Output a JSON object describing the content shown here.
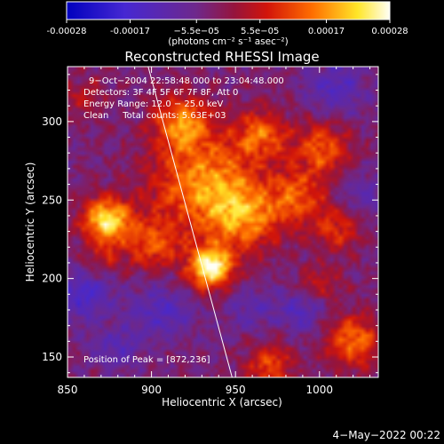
{
  "chart_data": {
    "type": "heatmap",
    "title": "Reconstructed RHESSI Image",
    "xlabel": "Heliocentric X (arcsec)",
    "ylabel": "Heliocentric Y (arcsec)",
    "xlim": [
      850,
      1035
    ],
    "ylim": [
      137,
      335
    ],
    "x_ticks": [
      850,
      900,
      950,
      1000
    ],
    "y_ticks": [
      150,
      200,
      250,
      300
    ],
    "colorbar": {
      "min": -0.00028,
      "max": 0.00028,
      "tick_values": [
        -0.00028,
        -0.00017,
        -5.5e-05,
        5.5e-05,
        0.00017,
        0.00028
      ],
      "tick_labels": [
        "-0.00028",
        "-0.00017",
        "−5.5e−05",
        "5.5e−05",
        "0.00017",
        "0.00028"
      ],
      "label": "(photons cm⁻² s⁻¹ asec⁻²)",
      "colormap": "blue-purple-red-orange-yellow-white"
    },
    "annotations": [
      "9−Oct−2004 22:58:48.000 to 23:04:48.000",
      "Detectors: 3F 4F 5F 6F 7F 8F, Att 0",
      "Energy Range: 12.0 − 25.0 keV",
      "Clean     Total counts: 5.63E+03"
    ],
    "peak_label": "Position of Peak = [872,236]",
    "peak": [
      872,
      236
    ],
    "limb_line": [
      [
        898,
        335
      ],
      [
        948,
        137
      ]
    ],
    "sources": [
      {
        "x": 935,
        "y": 207,
        "intensity": 1.0,
        "width": 9
      },
      {
        "x": 873,
        "y": 237,
        "intensity": 0.85,
        "width": 10
      },
      {
        "x": 930,
        "y": 262,
        "intensity": 0.6,
        "width": 22
      },
      {
        "x": 955,
        "y": 240,
        "intensity": 0.55,
        "width": 16
      },
      {
        "x": 918,
        "y": 300,
        "intensity": 0.55,
        "width": 12
      },
      {
        "x": 965,
        "y": 292,
        "intensity": 0.5,
        "width": 11
      },
      {
        "x": 1002,
        "y": 283,
        "intensity": 0.5,
        "width": 12
      },
      {
        "x": 988,
        "y": 252,
        "intensity": 0.45,
        "width": 12
      },
      {
        "x": 900,
        "y": 222,
        "intensity": 0.45,
        "width": 12
      },
      {
        "x": 1020,
        "y": 160,
        "intensity": 0.55,
        "width": 12
      },
      {
        "x": 970,
        "y": 145,
        "intensity": 0.45,
        "width": 10
      },
      {
        "x": 1010,
        "y": 230,
        "intensity": 0.35,
        "width": 10
      },
      {
        "x": 1000,
        "y": 196,
        "intensity": 0.3,
        "width": 9
      },
      {
        "x": 860,
        "y": 315,
        "intensity": 0.25,
        "width": 9
      },
      {
        "x": 870,
        "y": 212,
        "intensity": 0.25,
        "width": 8
      },
      {
        "x": 905,
        "y": 180,
        "intensity": -0.3,
        "width": 12
      },
      {
        "x": 860,
        "y": 190,
        "intensity": -0.35,
        "width": 12
      },
      {
        "x": 1010,
        "y": 320,
        "intensity": -0.3,
        "width": 12
      },
      {
        "x": 990,
        "y": 180,
        "intensity": -0.3,
        "width": 10
      },
      {
        "x": 880,
        "y": 155,
        "intensity": -0.25,
        "width": 10
      },
      {
        "x": 960,
        "y": 180,
        "intensity": -0.2,
        "width": 10
      },
      {
        "x": 1025,
        "y": 255,
        "intensity": -0.2,
        "width": 10
      }
    ]
  },
  "footer": {
    "date": "4−May−2022 00:22"
  }
}
